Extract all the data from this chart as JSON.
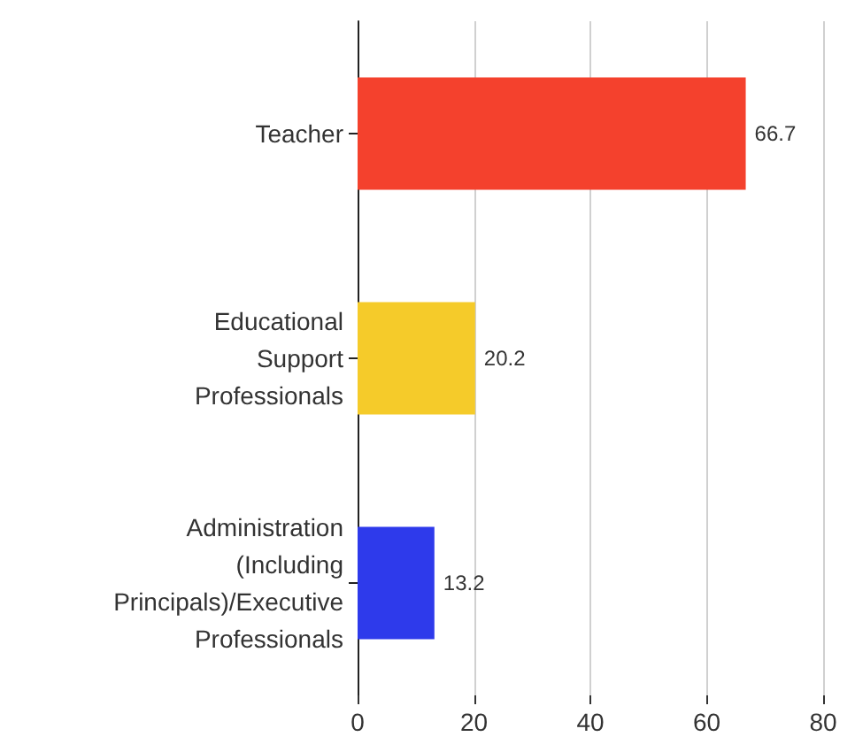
{
  "chart_data": {
    "type": "bar",
    "orientation": "horizontal",
    "categories": [
      "Teacher",
      "Educational\nSupport\nProfessionals",
      "Administration\n(Including\nPrincipals)/Executive\nProfessionals"
    ],
    "values": [
      66.7,
      20.2,
      13.2
    ],
    "colors": [
      "#f4412d",
      "#f5cb2a",
      "#2e3aeb"
    ],
    "xlim": [
      0,
      80
    ],
    "xticks": [
      0,
      20,
      40,
      60,
      80
    ],
    "grid": "x",
    "data_labels": true
  }
}
